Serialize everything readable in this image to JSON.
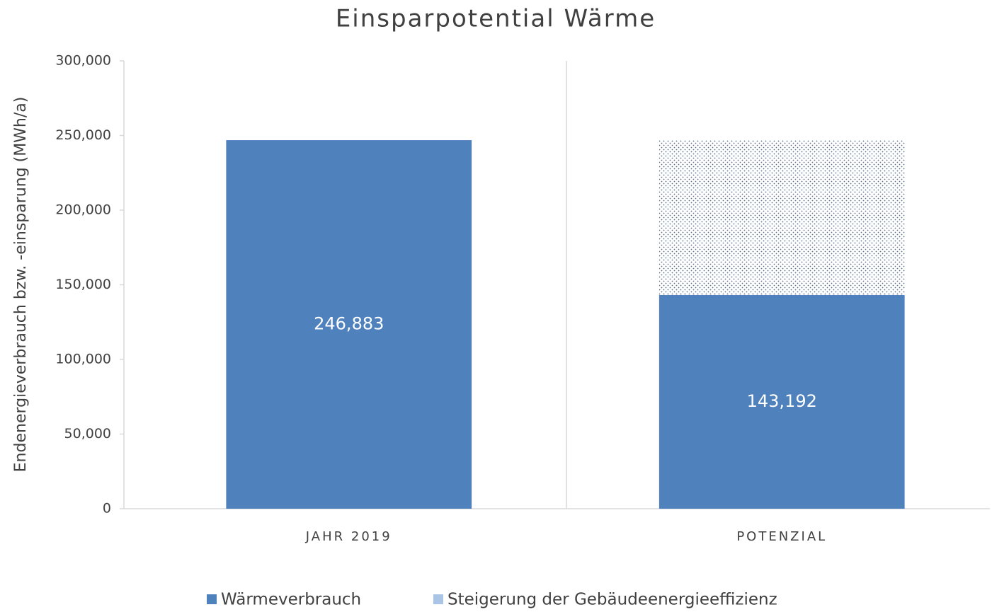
{
  "chart_data": {
    "type": "stacked_bar",
    "title": "Einsparpotential Wärme",
    "y_label": "Endenergieverbrauch bzw. -einsparung (MWh/a)",
    "categories": [
      "JAHR 2019",
      "POTENZIAL"
    ],
    "series": [
      {
        "name": "Wärmeverbrauch",
        "color": "#4f81bd",
        "values": [
          246883,
          143192
        ],
        "value_labels": [
          "246,883",
          "143,192"
        ]
      },
      {
        "name": "Steigerung der Gebäudeenergieeffizienz",
        "color": "#a9c4e4",
        "values": [
          null,
          103691
        ]
      }
    ],
    "ylim": [
      0,
      300000
    ],
    "yticks": [
      0,
      {
        "value": 50000,
        "label": "50,000"
      },
      {
        "value": 100000,
        "label": "100,000"
      },
      {
        "value": 150000,
        "label": "150,000"
      },
      {
        "value": 200000,
        "label": "200,000"
      },
      {
        "value": 250000,
        "label": "250,000"
      },
      {
        "value": 300000,
        "label": "300,000"
      }
    ],
    "grid": false
  }
}
